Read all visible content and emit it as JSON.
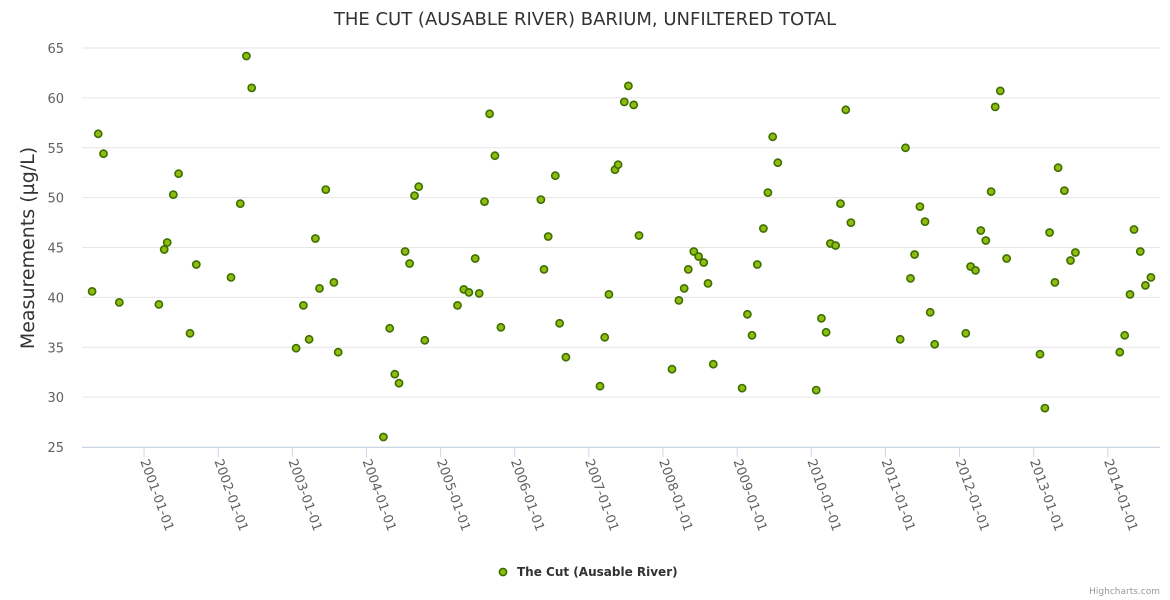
{
  "chart_data": {
    "type": "scatter",
    "title": "THE CUT (AUSABLE RIVER) BARIUM, UNFILTERED TOTAL",
    "xlabel": "",
    "ylabel": "Measurements (µg/L)",
    "ylim": [
      25,
      65
    ],
    "yticks": [
      "25",
      "30",
      "35",
      "40",
      "45",
      "50",
      "55",
      "60",
      "65"
    ],
    "xlim": [
      "2000-03-01",
      "2014-09-15"
    ],
    "xticks": [
      "2001-01-01",
      "2002-01-01",
      "2003-01-01",
      "2004-01-01",
      "2005-01-01",
      "2006-01-01",
      "2007-01-01",
      "2008-01-01",
      "2009-01-01",
      "2010-01-01",
      "2011-01-01",
      "2012-01-01",
      "2013-01-01",
      "2014-01-01"
    ],
    "legend": "bottom-center",
    "grid": true,
    "series": [
      {
        "name": "The Cut (Ausable River)",
        "color": "#8fbc10",
        "points": [
          [
            "2000-04-20",
            40.6
          ],
          [
            "2000-05-20",
            56.4
          ],
          [
            "2000-06-15",
            54.4
          ],
          [
            "2000-09-01",
            39.5
          ],
          [
            "2001-03-15",
            39.3
          ],
          [
            "2001-04-10",
            44.8
          ],
          [
            "2001-04-25",
            45.5
          ],
          [
            "2001-05-25",
            50.3
          ],
          [
            "2001-06-20",
            52.4
          ],
          [
            "2001-08-15",
            36.4
          ],
          [
            "2001-09-15",
            43.3
          ],
          [
            "2002-03-05",
            42.0
          ],
          [
            "2002-04-20",
            49.4
          ],
          [
            "2002-05-20",
            64.2
          ],
          [
            "2002-06-15",
            61.0
          ],
          [
            "2003-01-20",
            34.9
          ],
          [
            "2003-02-25",
            39.2
          ],
          [
            "2003-03-25",
            35.8
          ],
          [
            "2003-04-25",
            45.9
          ],
          [
            "2003-05-15",
            40.9
          ],
          [
            "2003-06-15",
            50.8
          ],
          [
            "2003-07-25",
            41.5
          ],
          [
            "2003-08-15",
            34.5
          ],
          [
            "2004-03-25",
            26.0
          ],
          [
            "2004-04-25",
            36.9
          ],
          [
            "2004-05-20",
            32.3
          ],
          [
            "2004-06-10",
            31.4
          ],
          [
            "2004-07-10",
            44.6
          ],
          [
            "2004-08-01",
            43.4
          ],
          [
            "2004-08-25",
            50.2
          ],
          [
            "2004-09-15",
            51.1
          ],
          [
            "2004-10-15",
            35.7
          ],
          [
            "2005-03-25",
            39.2
          ],
          [
            "2005-04-25",
            40.8
          ],
          [
            "2005-05-20",
            40.5
          ],
          [
            "2005-06-20",
            43.9
          ],
          [
            "2005-07-10",
            40.4
          ],
          [
            "2005-08-05",
            49.6
          ],
          [
            "2005-08-30",
            58.4
          ],
          [
            "2005-09-25",
            54.2
          ],
          [
            "2005-10-25",
            37.0
          ],
          [
            "2006-05-10",
            49.8
          ],
          [
            "2006-05-25",
            42.8
          ],
          [
            "2006-06-15",
            46.1
          ],
          [
            "2006-07-20",
            52.2
          ],
          [
            "2006-08-10",
            37.4
          ],
          [
            "2006-09-10",
            34.0
          ],
          [
            "2007-02-25",
            31.1
          ],
          [
            "2007-03-20",
            36.0
          ],
          [
            "2007-04-10",
            40.3
          ],
          [
            "2007-05-10",
            52.8
          ],
          [
            "2007-05-25",
            53.3
          ],
          [
            "2007-06-25",
            59.6
          ],
          [
            "2007-07-15",
            61.2
          ],
          [
            "2007-08-10",
            59.3
          ],
          [
            "2007-09-05",
            46.2
          ],
          [
            "2008-02-15",
            32.8
          ],
          [
            "2008-03-20",
            39.7
          ],
          [
            "2008-04-15",
            40.9
          ],
          [
            "2008-05-05",
            42.8
          ],
          [
            "2008-06-01",
            44.6
          ],
          [
            "2008-06-25",
            44.1
          ],
          [
            "2008-07-20",
            43.5
          ],
          [
            "2008-08-10",
            41.4
          ],
          [
            "2008-09-05",
            33.3
          ],
          [
            "2009-01-25",
            30.9
          ],
          [
            "2009-02-20",
            38.3
          ],
          [
            "2009-03-15",
            36.2
          ],
          [
            "2009-04-10",
            43.3
          ],
          [
            "2009-05-10",
            46.9
          ],
          [
            "2009-06-01",
            50.5
          ],
          [
            "2009-06-25",
            56.1
          ],
          [
            "2009-07-20",
            53.5
          ],
          [
            "2010-01-25",
            30.7
          ],
          [
            "2010-02-20",
            37.9
          ],
          [
            "2010-03-15",
            36.5
          ],
          [
            "2010-04-05",
            45.4
          ],
          [
            "2010-05-01",
            45.2
          ],
          [
            "2010-05-25",
            49.4
          ],
          [
            "2010-06-20",
            58.8
          ],
          [
            "2010-07-15",
            47.5
          ],
          [
            "2011-03-15",
            35.8
          ],
          [
            "2011-04-10",
            55.0
          ],
          [
            "2011-05-05",
            41.9
          ],
          [
            "2011-05-25",
            44.3
          ],
          [
            "2011-06-20",
            49.1
          ],
          [
            "2011-07-15",
            47.6
          ],
          [
            "2011-08-10",
            38.5
          ],
          [
            "2011-09-01",
            35.3
          ],
          [
            "2012-02-01",
            36.4
          ],
          [
            "2012-02-25",
            43.1
          ],
          [
            "2012-03-20",
            42.7
          ],
          [
            "2012-04-15",
            46.7
          ],
          [
            "2012-05-10",
            45.7
          ],
          [
            "2012-06-05",
            50.6
          ],
          [
            "2012-06-25",
            59.1
          ],
          [
            "2012-07-20",
            60.7
          ],
          [
            "2012-08-20",
            43.9
          ],
          [
            "2013-02-01",
            34.3
          ],
          [
            "2013-02-25",
            28.9
          ],
          [
            "2013-03-20",
            46.5
          ],
          [
            "2013-04-15",
            41.5
          ],
          [
            "2013-05-01",
            53.0
          ],
          [
            "2013-06-01",
            50.7
          ],
          [
            "2013-07-01",
            43.7
          ],
          [
            "2013-07-25",
            44.5
          ],
          [
            "2014-03-01",
            34.5
          ],
          [
            "2014-03-25",
            36.2
          ],
          [
            "2014-04-20",
            40.3
          ],
          [
            "2014-05-10",
            46.8
          ],
          [
            "2014-06-10",
            44.6
          ],
          [
            "2014-07-05",
            41.2
          ],
          [
            "2014-08-01",
            42.0
          ]
        ]
      }
    ]
  },
  "credits": "Highcharts.com"
}
